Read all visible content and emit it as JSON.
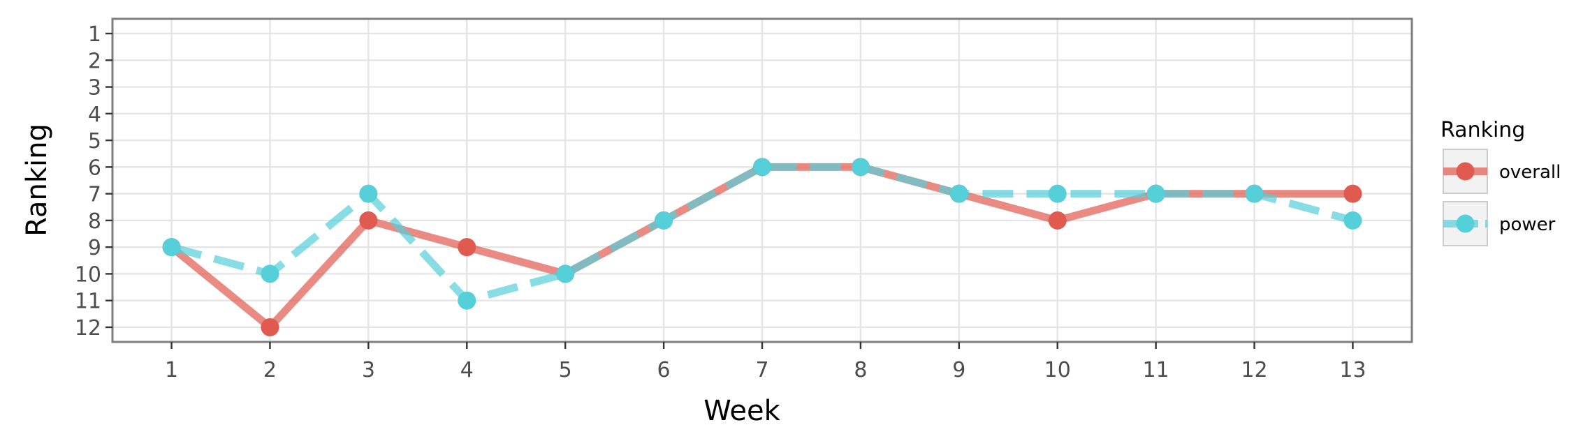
{
  "chart_data": {
    "type": "line",
    "title": "",
    "xlabel": "Week",
    "ylabel": "Ranking",
    "x": [
      1,
      2,
      3,
      4,
      5,
      6,
      7,
      8,
      9,
      10,
      11,
      12,
      13
    ],
    "x_ticks": [
      "1",
      "2",
      "3",
      "4",
      "5",
      "6",
      "7",
      "8",
      "9",
      "10",
      "11",
      "12",
      "13"
    ],
    "y_ticks": [
      "1",
      "2",
      "3",
      "4",
      "5",
      "6",
      "7",
      "8",
      "9",
      "10",
      "11",
      "12"
    ],
    "xlim": [
      0.4,
      13.6
    ],
    "ylim": [
      12.55,
      0.45
    ],
    "y_reversed": true,
    "grid": true,
    "legend_title": "Ranking",
    "legend_position": "right",
    "series": [
      {
        "name": "overall",
        "color": "#e05a4f",
        "line_style": "solid",
        "values": [
          9,
          12,
          8,
          9,
          10,
          8,
          6,
          6,
          7,
          8,
          7,
          7,
          7
        ]
      },
      {
        "name": "power",
        "color": "#55cfd8",
        "line_style": "dashed",
        "values": [
          9,
          10,
          7,
          11,
          10,
          8,
          6,
          6,
          7,
          7,
          7,
          7,
          8
        ]
      }
    ]
  }
}
